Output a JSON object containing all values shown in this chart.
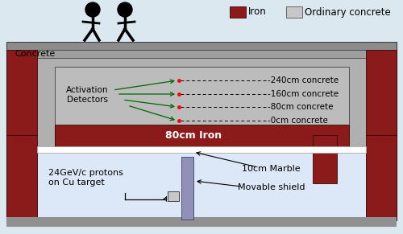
{
  "bg_color": "#dce8f0",
  "iron_color": "#8b1a1a",
  "concrete_dark": "#8c8c8c",
  "concrete_mid": "#9e9e9e",
  "concrete_light": "#b0b0b0",
  "concrete_lighter": "#bcbcbc",
  "concrete_lightest": "#c8c8c8",
  "hall_color": "#dce8f8",
  "marble_color": "#f0f4f8",
  "movable_color": "#9090b8",
  "white_color": "#ffffff",
  "iron_label": "Iron",
  "concrete_label": "Ordinary concrete",
  "concrete_text": "Concrete",
  "iron_bar_label": "80cm Iron",
  "proton_label": "24GeV/c protons\non Cu target",
  "marble_label": "10cm Marble",
  "movable_label": "Movable shield",
  "activation_label": "Activation\nDetectors",
  "annotations": [
    "240cm concrete",
    "160cm concrete",
    "80cm concrete",
    "0cm concrete"
  ]
}
